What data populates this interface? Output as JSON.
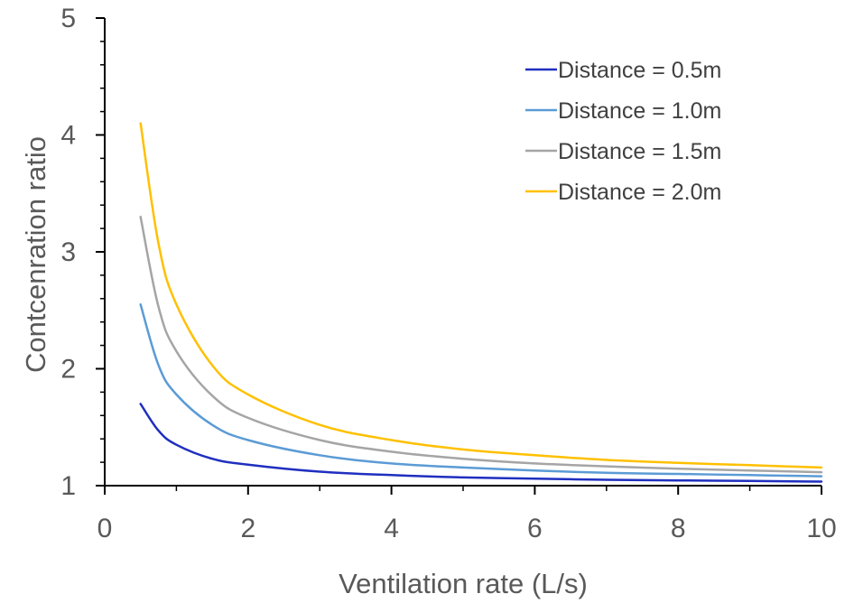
{
  "chart_data": {
    "type": "line",
    "title": "",
    "xlabel": "Ventilation rate (L/s)",
    "ylabel": "Contcenration ratio",
    "xlim": [
      0,
      10
    ],
    "ylim": [
      1,
      5
    ],
    "x_ticks": [
      "0",
      "2",
      "4",
      "6",
      "8",
      "10"
    ],
    "y_ticks": [
      "1",
      "2",
      "3",
      "4",
      "5"
    ],
    "grid": false,
    "legend_position": "top-right",
    "x": [
      0.5,
      0.75,
      1.0,
      1.5,
      2.0,
      3.0,
      4.0,
      5.0,
      6.0,
      7.0,
      8.0,
      9.0,
      10.0
    ],
    "series": [
      {
        "name": "Distance = 0.5m",
        "color": "#1f2fbf",
        "values": [
          1.7,
          1.47,
          1.35,
          1.23,
          1.18,
          1.12,
          1.09,
          1.07,
          1.06,
          1.05,
          1.045,
          1.04,
          1.035
        ]
      },
      {
        "name": "Distance = 1.0m",
        "color": "#5b9bd5",
        "values": [
          2.55,
          2.03,
          1.78,
          1.52,
          1.39,
          1.26,
          1.19,
          1.155,
          1.13,
          1.11,
          1.1,
          1.09,
          1.08
        ]
      },
      {
        "name": "Distance = 1.5m",
        "color": "#a5a5a5",
        "values": [
          3.3,
          2.53,
          2.15,
          1.77,
          1.58,
          1.39,
          1.29,
          1.23,
          1.19,
          1.165,
          1.145,
          1.13,
          1.115
        ]
      },
      {
        "name": "Distance = 2.0m",
        "color": "#ffc000",
        "values": [
          4.1,
          3.07,
          2.55,
          2.03,
          1.78,
          1.52,
          1.39,
          1.31,
          1.26,
          1.22,
          1.195,
          1.175,
          1.155
        ]
      }
    ]
  }
}
